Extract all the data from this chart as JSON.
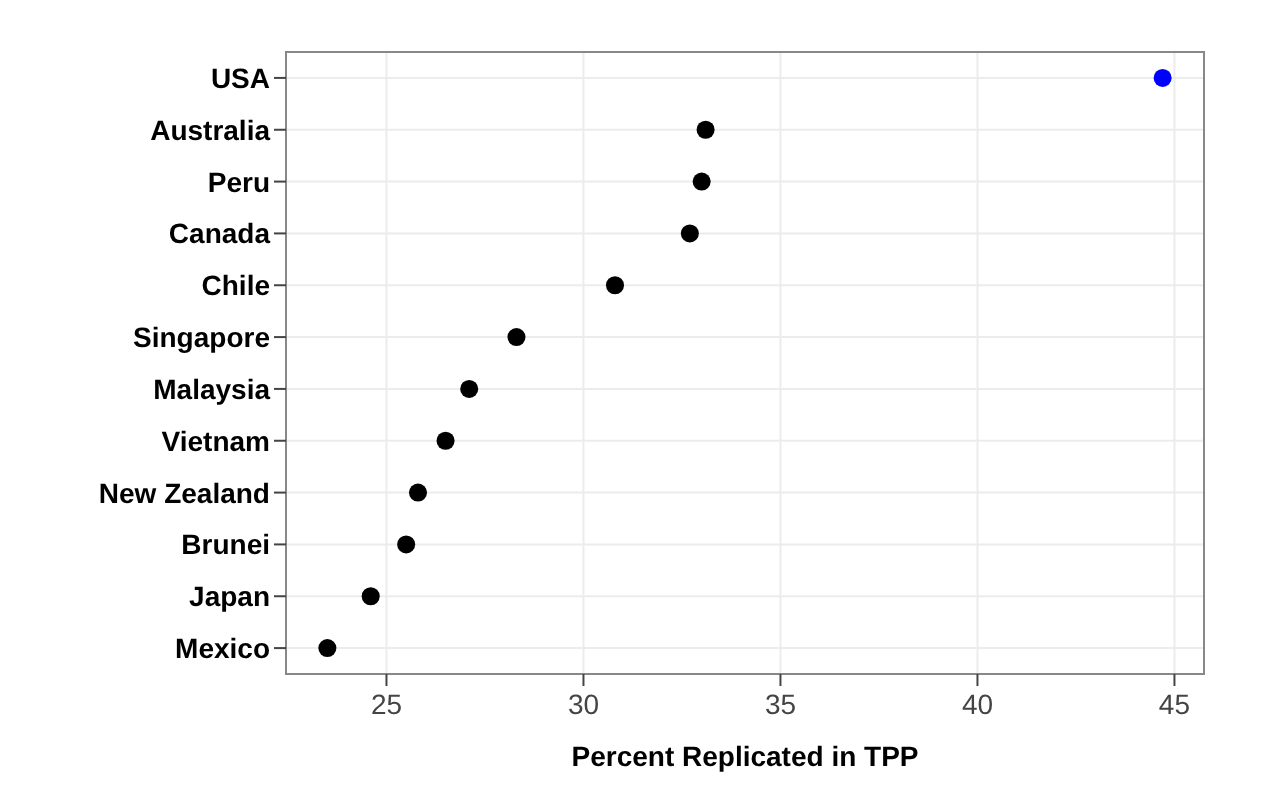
{
  "chart_data": {
    "type": "scatter",
    "orientation": "horizontal",
    "xlabel": "Percent Replicated in TPP",
    "categories": [
      "USA",
      "Australia",
      "Peru",
      "Canada",
      "Chile",
      "Singapore",
      "Malaysia",
      "Vietnam",
      "New Zealand",
      "Brunei",
      "Japan",
      "Mexico"
    ],
    "values": [
      44.7,
      33.1,
      33.0,
      32.7,
      30.8,
      28.3,
      27.1,
      26.5,
      25.8,
      25.5,
      24.6,
      23.5
    ],
    "colors": [
      "#0000ff",
      "#000000",
      "#000000",
      "#000000",
      "#000000",
      "#000000",
      "#000000",
      "#000000",
      "#000000",
      "#000000",
      "#000000",
      "#000000"
    ],
    "xlim": [
      22.45,
      45.75
    ],
    "xticks": [
      25,
      30,
      35,
      40,
      45
    ],
    "grid": true,
    "marker": "circle"
  }
}
